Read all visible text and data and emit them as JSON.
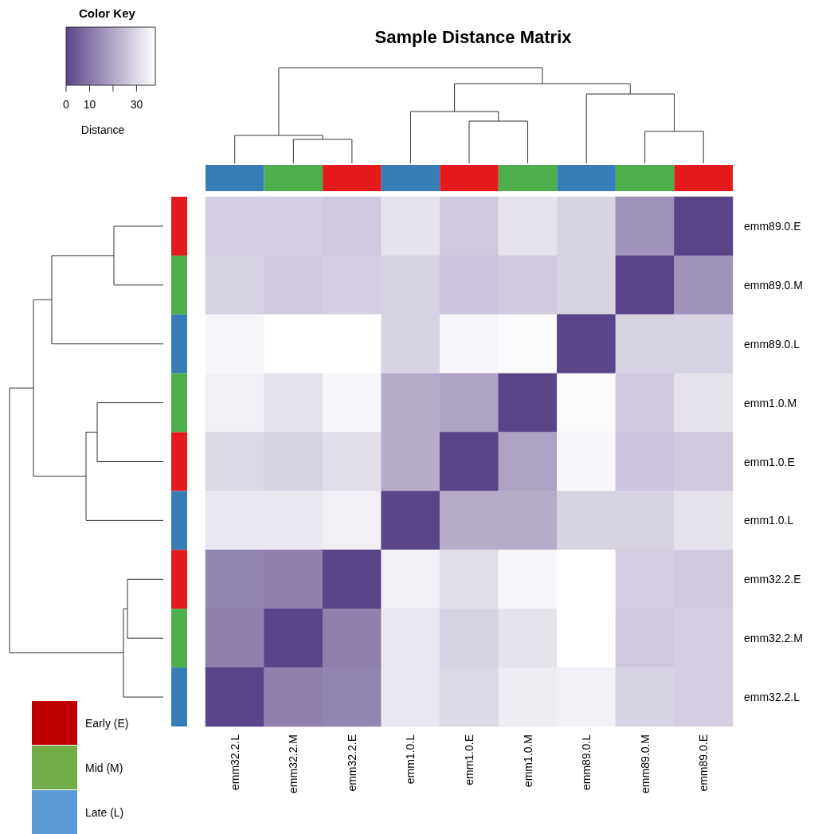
{
  "chart_data": {
    "type": "heatmap",
    "title": "Sample Distance Matrix",
    "legend_title": "Color Key",
    "clabel": "Distance",
    "categories": [
      "emm32.2.L",
      "emm32.2.M",
      "emm32.2.E",
      "emm1.0.L",
      "emm1.0.E",
      "emm1.0.M",
      "emm89.0.L",
      "emm89.0.M",
      "emm89.0.E"
    ],
    "y_categories": [
      "emm89.0.E",
      "emm89.0.M",
      "emm89.0.L",
      "emm1.0.M",
      "emm1.0.E",
      "emm1.0.L",
      "emm32.2.E",
      "emm32.2.M",
      "emm32.2.L"
    ],
    "cells": [
      [
        28,
        28,
        27,
        32,
        27,
        32,
        29,
        16,
        0
      ],
      [
        29,
        27,
        28,
        29,
        26,
        27,
        29,
        0,
        16
      ],
      [
        36,
        38,
        38,
        29,
        36,
        37,
        0,
        29,
        29
      ],
      [
        35,
        32,
        36,
        21,
        19,
        0,
        37,
        27,
        32
      ],
      [
        30,
        29,
        31,
        21,
        0,
        19,
        36,
        26,
        27
      ],
      [
        33,
        33,
        35,
        0,
        21,
        21,
        29,
        29,
        32
      ],
      [
        13,
        12,
        0,
        35,
        31,
        36,
        38,
        28,
        27
      ],
      [
        12,
        0,
        12,
        33,
        29,
        32,
        38,
        27,
        28
      ],
      [
        0,
        12,
        13,
        33,
        30,
        34,
        35,
        29,
        28
      ]
    ],
    "clim": [
      0,
      38
    ],
    "cticks": [
      0,
      10,
      {
        "value": 20,
        "label": null
      },
      30
    ],
    "annotations": [
      "Early (E)",
      "Mid (M)",
      "Late (L)"
    ]
  }
}
